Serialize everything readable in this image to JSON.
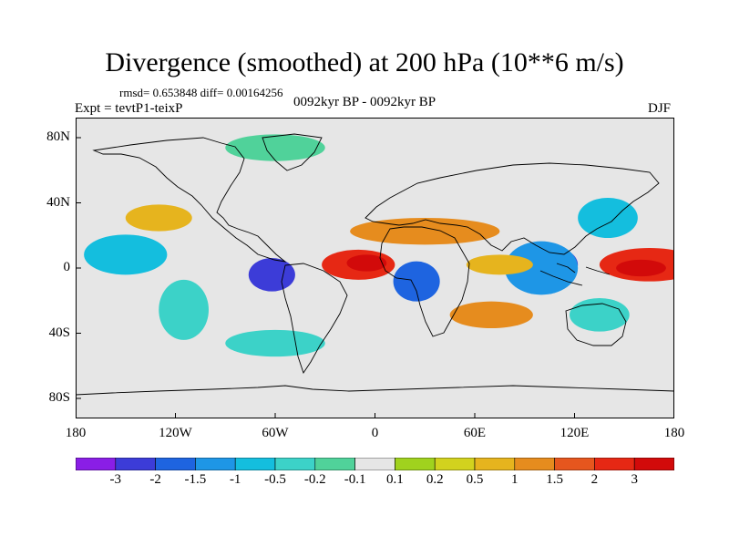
{
  "title": "Divergence (smoothed) at 200 hPa (10**6 m/s)",
  "stats": "rmsd= 0.653848 diff= 0.00164256",
  "experiment": "Expt = tevtP1-teixP",
  "period": "0092kyr BP - 0092kyr BP",
  "season": "DJF",
  "axes": {
    "x_ticks": [
      "180",
      "120W",
      "60W",
      "0",
      "60E",
      "120E",
      "180"
    ],
    "y_ticks": [
      "80N",
      "40N",
      "0",
      "40S",
      "80S"
    ]
  },
  "colorbar": {
    "labels": [
      "-3",
      "-2",
      "-1.5",
      "-1",
      "-0.5",
      "-0.2",
      "-0.1",
      "0.1",
      "0.2",
      "0.5",
      "1",
      "1.5",
      "2",
      "3"
    ],
    "colors": [
      "#8a1ee6",
      "#3c3cd8",
      "#1e64e0",
      "#1e96e6",
      "#14bede",
      "#3cd2c8",
      "#50d29a",
      "#e6e6e6",
      "#a0d21e",
      "#d2d21e",
      "#e6b41e",
      "#e68c1e",
      "#e6561e",
      "#e62814",
      "#d20a0a"
    ]
  },
  "map": {
    "background_color": "#e6e6e6",
    "features": [
      {
        "name": "west-pacific-dipole-pos",
        "lon": 165,
        "lat": 2,
        "w": 30,
        "h": 10,
        "ci": 13
      },
      {
        "name": "west-pacific-pos-core",
        "lon": 160,
        "lat": 0,
        "w": 15,
        "h": 5,
        "ci": 14
      },
      {
        "name": "maritime-neg",
        "lon": 108,
        "lat": 2,
        "w": 14,
        "h": 10,
        "ci": 1
      },
      {
        "name": "maritime-neg-outer",
        "lon": 100,
        "lat": 0,
        "w": 22,
        "h": 16,
        "ci": 3
      },
      {
        "name": "atlantic-pos",
        "lon": -10,
        "lat": 2,
        "w": 22,
        "h": 9,
        "ci": 13
      },
      {
        "name": "atlantic-pos-core",
        "lon": -5,
        "lat": 3,
        "w": 12,
        "h": 5,
        "ci": 14
      },
      {
        "name": "south-america-neg",
        "lon": -62,
        "lat": -4,
        "w": 14,
        "h": 10,
        "ci": 1
      },
      {
        "name": "africa-neg",
        "lon": 25,
        "lat": -8,
        "w": 14,
        "h": 12,
        "ci": 2
      },
      {
        "name": "north-africa-pos",
        "lon": 30,
        "lat": 22,
        "w": 45,
        "h": 8,
        "ci": 11
      },
      {
        "name": "indian-pos",
        "lon": 75,
        "lat": 2,
        "w": 20,
        "h": 6,
        "ci": 10
      },
      {
        "name": "pacific-neg",
        "lon": -150,
        "lat": 8,
        "w": 25,
        "h": 12,
        "ci": 4
      },
      {
        "name": "north-pacific-pos",
        "lon": -130,
        "lat": 30,
        "w": 20,
        "h": 8,
        "ci": 10
      },
      {
        "name": "south-pacific-neg",
        "lon": -115,
        "lat": -25,
        "w": 15,
        "h": 18,
        "ci": 5
      },
      {
        "name": "southern-ocean-neg",
        "lon": -60,
        "lat": -45,
        "w": 30,
        "h": 8,
        "ci": 5
      },
      {
        "name": "arctic-neg",
        "lon": -60,
        "lat": 72,
        "w": 30,
        "h": 8,
        "ci": 6
      },
      {
        "name": "east-asia-neg",
        "lon": 140,
        "lat": 30,
        "w": 18,
        "h": 12,
        "ci": 4
      },
      {
        "name": "south-indian-pos",
        "lon": 70,
        "lat": -28,
        "w": 25,
        "h": 8,
        "ci": 11
      },
      {
        "name": "australia-neg",
        "lon": 135,
        "lat": -28,
        "w": 18,
        "h": 10,
        "ci": 5
      }
    ]
  }
}
